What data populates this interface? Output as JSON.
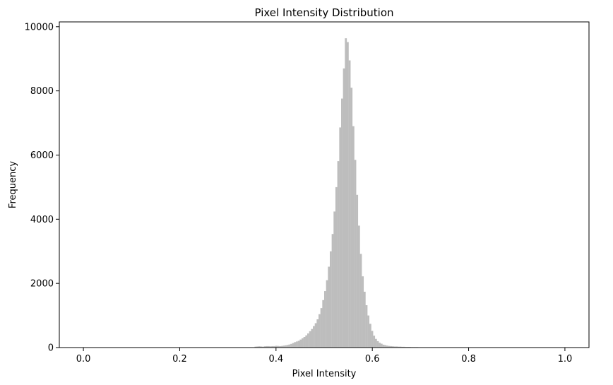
{
  "chart_data": {
    "type": "bar",
    "title": "Pixel Intensity Distribution",
    "xlabel": "Pixel Intensity",
    "ylabel": "Frequency",
    "xlim": [
      -0.05,
      1.05
    ],
    "ylim": [
      0,
      10150
    ],
    "xticks": [
      0.0,
      0.2,
      0.4,
      0.6,
      0.8,
      1.0
    ],
    "xtick_labels": [
      "0.0",
      "0.2",
      "0.4",
      "0.6",
      "0.8",
      "1.0"
    ],
    "yticks": [
      0,
      2000,
      4000,
      6000,
      8000,
      10000
    ],
    "ytick_labels": [
      "0",
      "2000",
      "4000",
      "6000",
      "8000",
      "10000"
    ],
    "bin_width": 0.00390625,
    "grid": false,
    "bar_color": "#bdbdbd",
    "series": [
      {
        "x": [
          0.3555,
          0.3594,
          0.3633,
          0.3672,
          0.3711,
          0.375,
          0.3789,
          0.3828,
          0.3867,
          0.3906,
          0.3945,
          0.3984,
          0.4023,
          0.4063,
          0.4102,
          0.4141,
          0.418,
          0.4219,
          0.4258,
          0.4297,
          0.4336,
          0.4375,
          0.4414,
          0.4453,
          0.4492,
          0.4531,
          0.457,
          0.4609,
          0.4648,
          0.4688,
          0.4727,
          0.4766,
          0.4805,
          0.4844,
          0.4883,
          0.4922,
          0.4961,
          0.5,
          0.5039,
          0.5078,
          0.5117,
          0.5156,
          0.5195,
          0.5234,
          0.5273,
          0.5313,
          0.5352,
          0.5391,
          0.543,
          0.5469,
          0.5508,
          0.5547,
          0.5586,
          0.5625,
          0.5664,
          0.5703,
          0.5742,
          0.5781,
          0.582,
          0.5859,
          0.5898,
          0.5938,
          0.5977,
          0.6016,
          0.6055,
          0.6094,
          0.6133,
          0.6172,
          0.6211,
          0.625,
          0.6289,
          0.6328,
          0.6367,
          0.6406,
          0.6445,
          0.6484,
          0.6523,
          0.6563,
          0.6602,
          0.6641,
          0.668,
          0.6719,
          0.6758,
          0.6797,
          0.6836,
          0.6875,
          0.6914,
          0.6953,
          0.6992,
          0.7031,
          0.707
        ],
        "values": [
          30,
          35,
          40,
          35,
          30,
          40,
          45,
          45,
          40,
          45,
          45,
          55,
          50,
          45,
          50,
          60,
          70,
          80,
          95,
          115,
          140,
          170,
          190,
          210,
          250,
          290,
          330,
          380,
          440,
          510,
          580,
          670,
          760,
          880,
          1040,
          1230,
          1480,
          1760,
          2100,
          2520,
          3000,
          3540,
          4240,
          5000,
          5810,
          6860,
          7760,
          8700,
          9640,
          9520,
          8950,
          8100,
          6900,
          5850,
          4760,
          3800,
          2920,
          2220,
          1740,
          1320,
          1000,
          740,
          520,
          370,
          270,
          200,
          150,
          120,
          90,
          75,
          60,
          50,
          45,
          40,
          35,
          35,
          30,
          30,
          25,
          25,
          20,
          20,
          20,
          15,
          15,
          15,
          15,
          10,
          10,
          10,
          10
        ]
      }
    ]
  }
}
